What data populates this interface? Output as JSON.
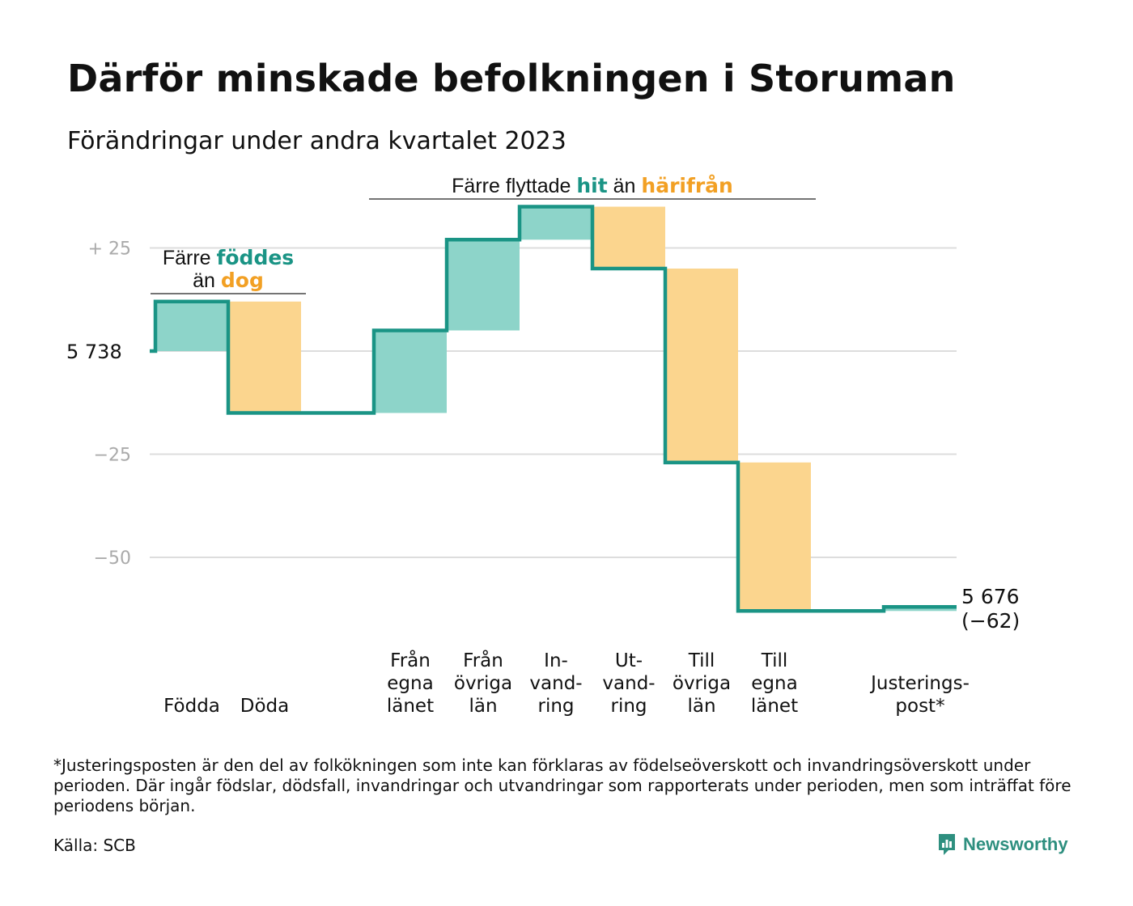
{
  "title": "Därför minskade befolkningen i Storuman",
  "subtitle": "Förändringar under andra kvartalet 2023",
  "colors": {
    "positive": "#8dd4c9",
    "negative": "#fbd58e",
    "line": "#1a9485",
    "teal_text": "#1a9485",
    "orange_text": "#f2a024",
    "grid": "#dddddd",
    "axis_text": "#aaaaaa"
  },
  "chart_data": {
    "type": "waterfall",
    "start_label": "5  738",
    "end_label": "5 676",
    "end_change_label": "(−62)",
    "y_ticks": [
      {
        "value": 25,
        "label": "+  25"
      },
      {
        "value": 0,
        "label": ""
      },
      {
        "value": -25,
        "label": "−25"
      },
      {
        "value": -50,
        "label": "−50"
      }
    ],
    "ylim": [
      -70,
      36
    ],
    "grid": true,
    "steps": [
      {
        "label_lines": [
          "Födda"
        ],
        "change": 12,
        "sign": "positive"
      },
      {
        "label_lines": [
          "Döda"
        ],
        "change": -27,
        "sign": "negative"
      },
      {
        "label_lines": [],
        "change": 0,
        "sign": "none"
      },
      {
        "label_lines": [
          "Från",
          "egna",
          "länet"
        ],
        "change": 20,
        "sign": "positive"
      },
      {
        "label_lines": [
          "Från",
          "övriga",
          "län"
        ],
        "change": 22,
        "sign": "positive"
      },
      {
        "label_lines": [
          "In-",
          "vand-",
          "ring"
        ],
        "change": 8,
        "sign": "positive"
      },
      {
        "label_lines": [
          "Ut-",
          "vand-",
          "ring"
        ],
        "change": -15,
        "sign": "negative"
      },
      {
        "label_lines": [
          "Till",
          "övriga",
          "län"
        ],
        "change": -47,
        "sign": "negative"
      },
      {
        "label_lines": [
          "Till",
          "egna",
          "länet"
        ],
        "change": -36,
        "sign": "negative"
      },
      {
        "label_lines": [],
        "change": 0,
        "sign": "none"
      },
      {
        "label_lines": [
          "Justerings-",
          "post*"
        ],
        "change": 1,
        "sign": "positive"
      }
    ],
    "annotations": [
      {
        "first_step": 0,
        "last_step": 1,
        "lines": [
          [
            {
              "text": "Färre ",
              "style": "plain"
            },
            {
              "text": "föddes",
              "style": "teal"
            }
          ],
          [
            {
              "text": "än ",
              "style": "plain"
            },
            {
              "text": "dog",
              "style": "orange"
            }
          ]
        ]
      },
      {
        "first_step": 3,
        "last_step": 8,
        "lines": [
          [
            {
              "text": "Färre flyttade ",
              "style": "plain"
            },
            {
              "text": "hit",
              "style": "teal"
            },
            {
              "text": "  än ",
              "style": "plain"
            },
            {
              "text": "härifrån",
              "style": "orange"
            }
          ]
        ]
      }
    ]
  },
  "footnote": "*Justeringsposten är den del av folkökningen som inte kan förklaras av födelseöverskott och invandringsöverskott under perioden. Där ingår födslar, dödsfall, invandringar och utvandringar som rapporterats under perioden, men som inträffat före periodens början.",
  "source": "Källa: SCB",
  "brand": {
    "name": "Newsworthy",
    "icon": "newsworthy-logo-icon"
  }
}
